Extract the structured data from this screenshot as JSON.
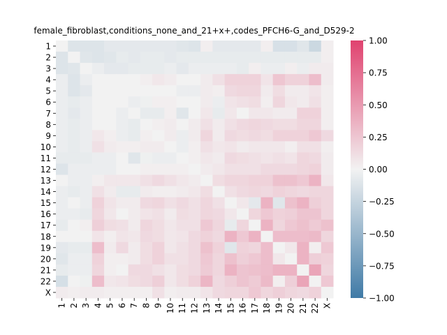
{
  "chart_data": {
    "type": "heatmap",
    "title": "female_fibroblast,conditions_none_and_21+x+,codes_PFCH6-G_and_D529-2",
    "xlabel": "",
    "ylabel": "",
    "x_categories": [
      "1",
      "2",
      "3",
      "4",
      "5",
      "6",
      "7",
      "8",
      "9",
      "10",
      "11",
      "12",
      "13",
      "14",
      "15",
      "16",
      "17",
      "18",
      "19",
      "20",
      "21",
      "22",
      "X"
    ],
    "y_categories": [
      "1",
      "2",
      "3",
      "4",
      "5",
      "6",
      "7",
      "8",
      "9",
      "10",
      "11",
      "12",
      "13",
      "14",
      "15",
      "16",
      "17",
      "18",
      "19",
      "20",
      "21",
      "22",
      "X"
    ],
    "colorbar": {
      "min": -1.0,
      "max": 1.0,
      "ticks": [
        "1.00",
        "0.75",
        "0.50",
        "0.25",
        "0.00",
        "−0.25",
        "−0.50",
        "−0.75",
        "−1.00"
      ],
      "tick_values": [
        1.0,
        0.75,
        0.5,
        0.25,
        0.0,
        -0.25,
        -0.5,
        -0.75,
        -1.0
      ]
    },
    "colors": {
      "negative": "#3f7aa6",
      "neutral": "#f2f2f2",
      "positive": "#e0426f"
    },
    "values": [
      [
        0.0,
        -0.12,
        -0.12,
        -0.12,
        -0.08,
        -0.08,
        -0.08,
        -0.08,
        -0.08,
        -0.08,
        -0.1,
        -0.12,
        0.02,
        -0.08,
        -0.08,
        -0.08,
        -0.08,
        0.02,
        -0.15,
        -0.15,
        -0.1,
        -0.22,
        0.02
      ],
      [
        -0.12,
        0.0,
        -0.1,
        -0.12,
        -0.1,
        -0.06,
        -0.08,
        -0.06,
        -0.06,
        -0.08,
        -0.06,
        -0.06,
        -0.06,
        -0.06,
        -0.06,
        -0.06,
        -0.06,
        -0.06,
        -0.06,
        -0.06,
        -0.06,
        -0.06,
        0.02
      ],
      [
        -0.12,
        -0.1,
        0.0,
        -0.04,
        -0.08,
        -0.08,
        -0.06,
        -0.06,
        -0.06,
        -0.04,
        -0.08,
        -0.04,
        -0.04,
        -0.04,
        -0.04,
        -0.06,
        0.02,
        -0.04,
        -0.04,
        0.02,
        -0.04,
        0.04,
        0.04
      ],
      [
        -0.04,
        -0.12,
        -0.04,
        0.0,
        0.0,
        0.0,
        0.0,
        0.02,
        0.06,
        0.04,
        0.0,
        0.0,
        0.04,
        0.1,
        0.18,
        0.18,
        0.18,
        0.08,
        0.25,
        0.18,
        0.18,
        0.3,
        0.04
      ],
      [
        -0.04,
        -0.12,
        -0.08,
        0.0,
        0.0,
        0.0,
        0.0,
        0.0,
        0.0,
        0.0,
        -0.04,
        -0.04,
        0.04,
        0.02,
        0.14,
        0.16,
        0.16,
        0.04,
        0.12,
        0.04,
        0.04,
        0.08,
        0.02
      ],
      [
        -0.04,
        -0.06,
        -0.04,
        0.0,
        0.0,
        0.0,
        -0.04,
        -0.02,
        0.02,
        0.02,
        0.0,
        0.0,
        0.04,
        -0.04,
        0.08,
        0.1,
        0.12,
        0.02,
        0.16,
        0.06,
        0.04,
        0.1,
        0.02
      ],
      [
        -0.04,
        -0.08,
        -0.04,
        0.0,
        0.0,
        -0.04,
        0.0,
        -0.06,
        -0.06,
        0.02,
        -0.1,
        0.0,
        0.06,
        -0.06,
        0.06,
        0.0,
        0.06,
        0.06,
        0.04,
        0.04,
        0.18,
        0.18,
        0.02
      ],
      [
        -0.04,
        -0.06,
        -0.04,
        0.0,
        0.0,
        -0.04,
        -0.06,
        0.0,
        0.02,
        0.04,
        0.0,
        0.04,
        0.1,
        0.04,
        0.1,
        0.14,
        0.16,
        0.14,
        0.12,
        0.12,
        0.16,
        0.16,
        0.02
      ],
      [
        -0.04,
        -0.06,
        -0.04,
        0.06,
        0.02,
        -0.04,
        -0.06,
        0.02,
        0.0,
        0.04,
        -0.04,
        0.04,
        0.16,
        0.04,
        0.14,
        0.12,
        0.14,
        0.12,
        0.18,
        0.18,
        0.18,
        0.24,
        0.14
      ],
      [
        -0.04,
        -0.06,
        -0.04,
        0.1,
        0.04,
        0.02,
        0.02,
        0.04,
        0.04,
        0.0,
        -0.04,
        0.02,
        0.1,
        0.06,
        0.08,
        0.04,
        0.06,
        0.06,
        0.06,
        0.02,
        0.1,
        0.1,
        0.02
      ],
      [
        -0.06,
        -0.06,
        -0.06,
        -0.04,
        -0.04,
        0.0,
        -0.1,
        -0.02,
        -0.04,
        -0.04,
        0.0,
        0.02,
        0.06,
        0.04,
        0.14,
        0.12,
        0.1,
        0.08,
        0.1,
        0.08,
        0.16,
        0.14,
        0.04
      ],
      [
        -0.12,
        -0.04,
        -0.04,
        -0.04,
        -0.04,
        0.0,
        0.0,
        0.02,
        0.02,
        0.02,
        0.02,
        0.0,
        0.04,
        0.06,
        0.1,
        0.1,
        0.1,
        0.14,
        0.14,
        0.14,
        0.16,
        0.18,
        0.04
      ],
      [
        0.0,
        -0.04,
        -0.04,
        0.02,
        0.06,
        0.06,
        0.06,
        0.1,
        0.14,
        0.1,
        0.06,
        0.04,
        0.0,
        0.12,
        0.16,
        0.16,
        0.18,
        0.18,
        0.28,
        0.28,
        0.24,
        0.36,
        0.06
      ],
      [
        -0.04,
        -0.06,
        -0.04,
        0.1,
        0.04,
        -0.06,
        -0.06,
        0.04,
        0.02,
        0.02,
        0.04,
        0.06,
        0.12,
        0.0,
        0.1,
        0.14,
        0.16,
        0.14,
        0.18,
        0.16,
        0.14,
        0.16,
        0.16
      ],
      [
        -0.04,
        0.0,
        -0.04,
        0.18,
        0.08,
        0.04,
        0.04,
        0.14,
        0.16,
        0.1,
        0.14,
        0.1,
        0.16,
        0.1,
        0.0,
        0.06,
        -0.08,
        0.36,
        -0.1,
        0.28,
        0.36,
        0.2,
        0.16
      ],
      [
        -0.04,
        -0.04,
        -0.06,
        0.16,
        0.06,
        0.0,
        0.04,
        0.08,
        0.1,
        0.04,
        0.12,
        0.1,
        0.16,
        0.14,
        0.06,
        0.0,
        0.16,
        0.24,
        0.18,
        0.2,
        0.26,
        0.26,
        0.16
      ],
      [
        -0.06,
        0.0,
        0.02,
        0.2,
        0.12,
        0.1,
        0.04,
        0.16,
        0.12,
        0.06,
        0.1,
        0.1,
        0.24,
        0.16,
        -0.06,
        0.16,
        0.0,
        0.36,
        0.16,
        0.24,
        0.28,
        0.22,
        0.28
      ],
      [
        0.0,
        0.0,
        0.0,
        0.08,
        0.02,
        0.08,
        0.06,
        0.14,
        0.12,
        0.06,
        0.08,
        0.14,
        0.18,
        0.14,
        0.36,
        0.24,
        0.36,
        0.0,
        0.3,
        0.3,
        0.3,
        0.32,
        0.16
      ],
      [
        -0.08,
        -0.06,
        -0.06,
        0.3,
        0.04,
        0.14,
        0.04,
        0.12,
        0.18,
        0.06,
        0.1,
        0.14,
        0.28,
        0.18,
        -0.1,
        0.18,
        0.16,
        0.3,
        0.0,
        0.06,
        0.36,
        0.02,
        0.24
      ],
      [
        -0.1,
        -0.04,
        -0.04,
        0.18,
        0.02,
        0.02,
        0.04,
        0.12,
        0.18,
        0.1,
        0.1,
        0.14,
        0.24,
        0.16,
        0.28,
        0.2,
        0.24,
        0.3,
        0.06,
        0.0,
        0.36,
        0.2,
        0.18
      ],
      [
        -0.06,
        -0.04,
        -0.04,
        0.16,
        0.02,
        0.0,
        0.14,
        0.14,
        0.1,
        0.06,
        0.12,
        0.14,
        0.22,
        0.16,
        0.36,
        0.26,
        0.28,
        0.3,
        0.36,
        0.36,
        0.0,
        0.44,
        0.16
      ],
      [
        -0.16,
        0.0,
        -0.02,
        0.3,
        0.06,
        0.08,
        0.12,
        0.14,
        0.2,
        0.06,
        0.12,
        0.18,
        0.34,
        0.14,
        0.2,
        0.26,
        0.22,
        0.32,
        0.02,
        0.2,
        0.44,
        0.0,
        0.24
      ],
      [
        0.04,
        0.02,
        0.04,
        0.04,
        0.02,
        0.02,
        0.02,
        0.02,
        0.1,
        0.02,
        0.04,
        0.04,
        0.08,
        0.14,
        0.16,
        0.16,
        0.24,
        0.16,
        0.2,
        0.16,
        0.14,
        0.18,
        0.0
      ]
    ]
  }
}
